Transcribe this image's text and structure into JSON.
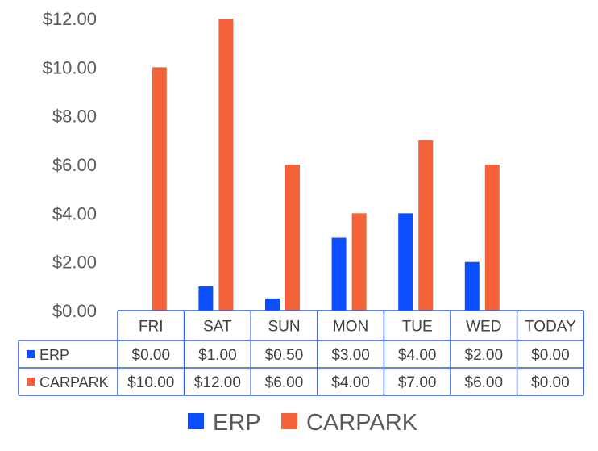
{
  "chart_data": {
    "type": "bar",
    "categories": [
      "FRI",
      "SAT",
      "SUN",
      "MON",
      "TUE",
      "WED",
      "TODAY"
    ],
    "series": [
      {
        "name": "ERP",
        "color": "#0b4fff",
        "values": [
          0,
          1,
          0.5,
          3,
          4,
          2,
          0
        ],
        "labels": [
          "$0.00",
          "$1.00",
          "$0.50",
          "$3.00",
          "$4.00",
          "$2.00",
          "$0.00"
        ]
      },
      {
        "name": "CARPARK",
        "color": "#f4623a",
        "values": [
          10,
          12,
          6,
          4,
          7,
          6,
          0
        ],
        "labels": [
          "$10.00",
          "$12.00",
          "$6.00",
          "$4.00",
          "$7.00",
          "$6.00",
          "$0.00"
        ]
      }
    ],
    "ylim": [
      0,
      12
    ],
    "yticks": [
      0,
      2,
      4,
      6,
      8,
      10,
      12
    ],
    "ytick_labels": [
      "$0.00",
      "$2.00",
      "$4.00",
      "$6.00",
      "$8.00",
      "$10.00",
      "$12.00"
    ],
    "data_table": true,
    "legend_position": "bottom",
    "table_border_color": "#2f5fd6"
  }
}
